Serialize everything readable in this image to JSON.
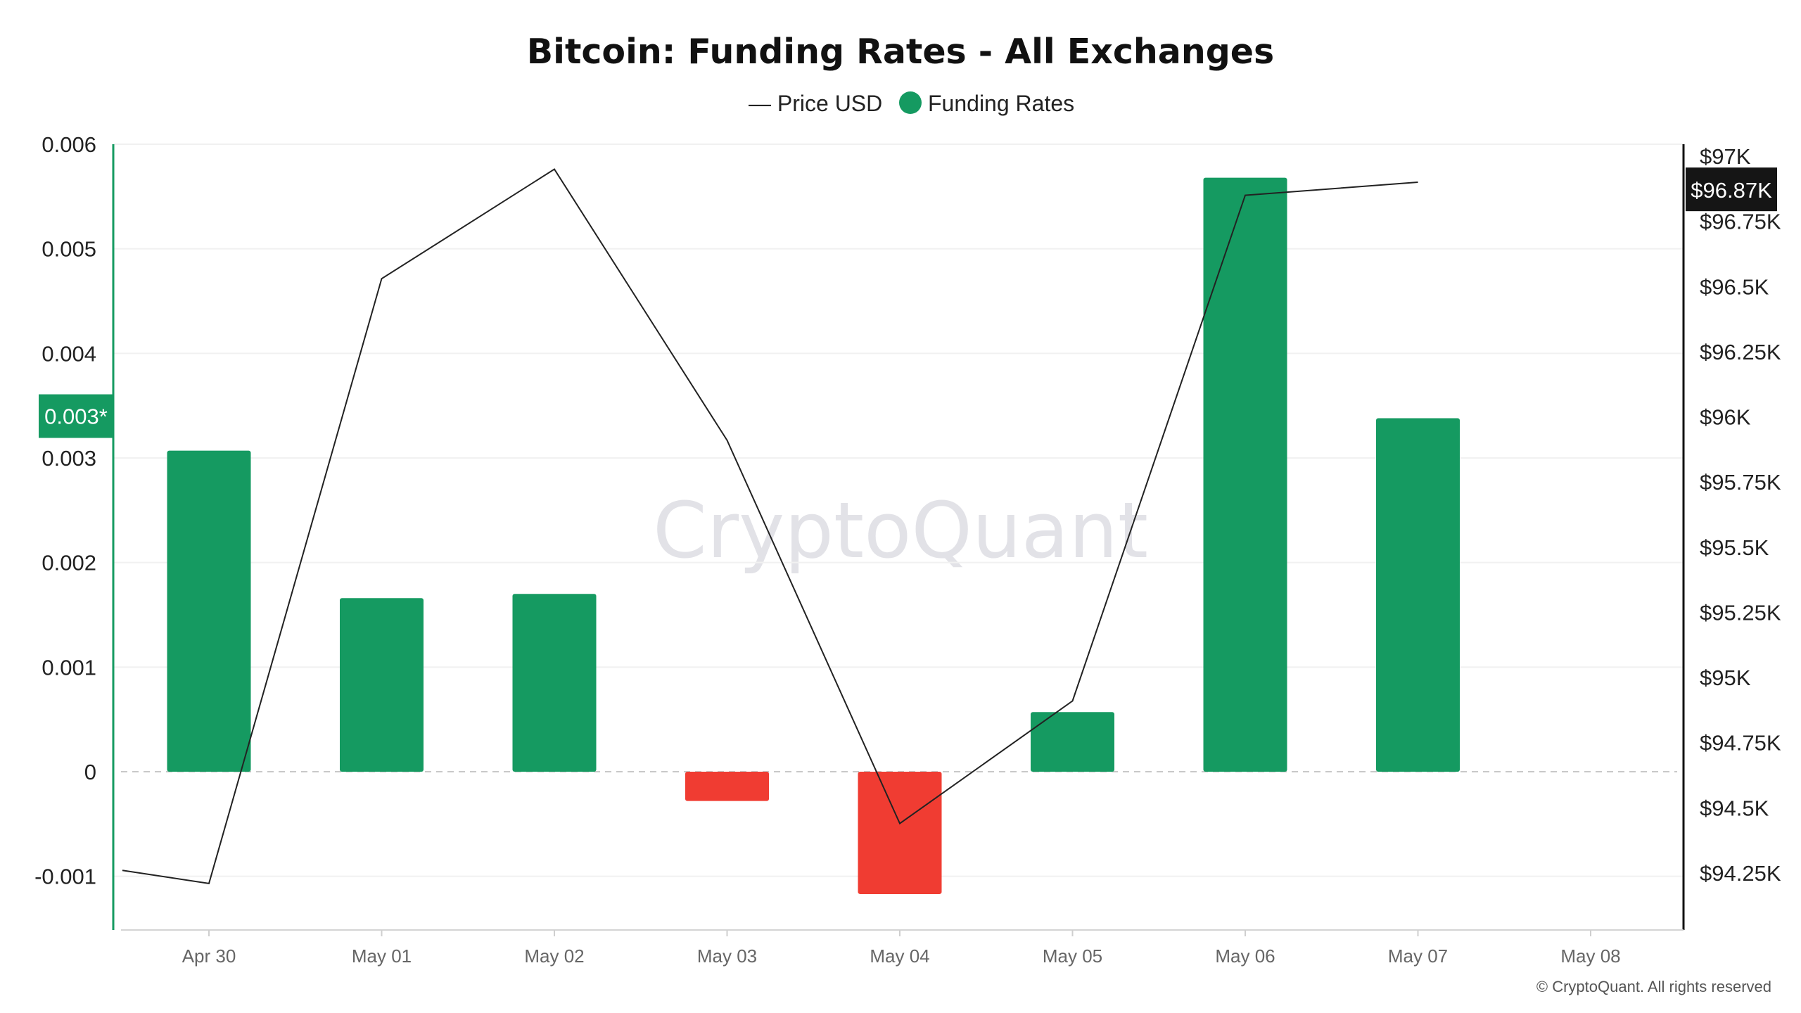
{
  "colors": {
    "positive": "#159a61",
    "negative": "#f03c32",
    "price_line": "#222222",
    "price_badge_bg": "#151515",
    "left_axis": "#159a61",
    "right_axis": "#111111"
  },
  "chart_data": {
    "type": "bar",
    "title": "Bitcoin: Funding Rates - All Exchanges",
    "legend": {
      "placement": "top-center",
      "items": [
        {
          "label": "— Price USD",
          "icon": "line"
        },
        {
          "label": "Funding Rates",
          "icon": "circle"
        }
      ]
    },
    "categories": [
      "Apr 30",
      "May 01",
      "May 02",
      "May 03",
      "May 04",
      "May 05",
      "May 06",
      "May 07",
      "May 08"
    ],
    "series": [
      {
        "name": "Funding Rates",
        "type": "bar",
        "axis": "left",
        "values": [
          0.00307,
          0.00166,
          0.0017,
          -0.00028,
          -0.00117,
          0.00057,
          0.00568,
          0.00338,
          null
        ]
      },
      {
        "name": "Price USD",
        "type": "line",
        "axis": "right",
        "points": [
          {
            "x": "Apr 30",
            "y": 94.21
          },
          {
            "x": "May 01",
            "y": 96.53
          },
          {
            "x": "May 02",
            "y": 96.95
          },
          {
            "x": "May 03",
            "y": 95.91
          },
          {
            "x": "May 04",
            "y": 94.44
          },
          {
            "x": "May 05",
            "y": 94.91
          },
          {
            "x": "May 06",
            "y": 96.85
          },
          {
            "x": "May 07",
            "y": 96.9
          }
        ],
        "line_start_y": 94.26
      }
    ],
    "left_axis": {
      "ticks": [
        "0.006",
        "0.005",
        "0.004",
        "0.003",
        "0.002",
        "0.001",
        "0",
        "-0.001"
      ],
      "tick_values": [
        0.006,
        0.005,
        0.004,
        0.003,
        0.002,
        0.001,
        0,
        -0.001
      ],
      "ylim": [
        -0.0015,
        0.006
      ],
      "badge_label": "0.003*",
      "badge_value": 0.0034
    },
    "right_axis": {
      "ticks": [
        "$97K",
        "$96.75K",
        "$96.5K",
        "$96.25K",
        "$96K",
        "$95.75K",
        "$95.5K",
        "$95.25K",
        "$95K",
        "$94.75K",
        "$94.5K",
        "$94.25K"
      ],
      "tick_values": [
        97,
        96.75,
        96.5,
        96.25,
        96,
        95.75,
        95.5,
        95.25,
        95,
        94.75,
        94.5,
        94.25
      ],
      "badge_label": "$96.87K",
      "badge_value": 96.87
    },
    "grid": true,
    "zero_line": "dashed"
  },
  "watermark": "CryptoQuant",
  "copyright": "© CryptoQuant. All rights reserved"
}
